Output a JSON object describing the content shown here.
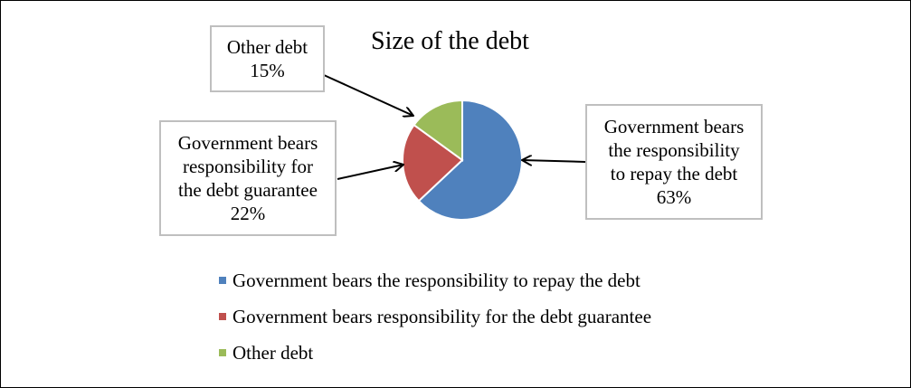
{
  "chart_data": {
    "type": "pie",
    "title": "Size of the debt",
    "categories": [
      "Government bears the responsibility to repay the debt",
      "Government bears responsibility for the debt guarantee",
      "Other debt"
    ],
    "values": [
      63,
      22,
      15
    ],
    "colors": [
      "#4f81bd",
      "#c0504d",
      "#9bbb59"
    ],
    "data_labels": {
      "repay": [
        "Government bears",
        "the responsibility",
        "to repay the debt",
        "63%"
      ],
      "guarantee": [
        "Government bears",
        "responsibility for",
        "the debt guarantee",
        "22%"
      ],
      "other": [
        "Other debt",
        "15%"
      ]
    },
    "legend_position": "bottom"
  }
}
